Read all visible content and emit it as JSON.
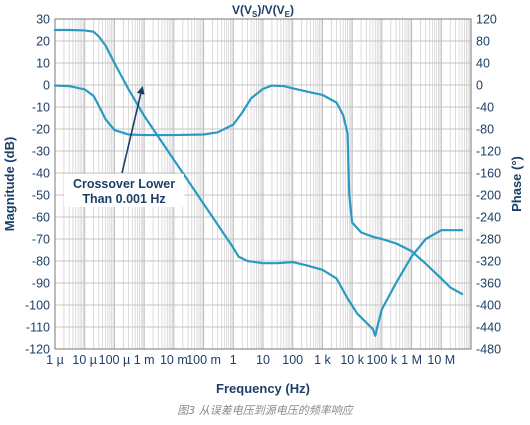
{
  "chart_data": {
    "type": "line",
    "title_parts": [
      "V(V",
      "S",
      ")/V(V",
      "E",
      ")"
    ],
    "xlabel": "Frequency (Hz)",
    "ylabel_left": "Magnitude (dB)",
    "ylabel_right": "Phase (°)",
    "x_scale": "log",
    "xlim": [
      1e-06,
      100000000.0
    ],
    "ylim_left": [
      -120,
      30
    ],
    "ylim_right": [
      -480,
      120
    ],
    "x_ticks": [
      {
        "value": 1e-06,
        "label": "1 µ"
      },
      {
        "value": 1e-05,
        "label": "10 µ"
      },
      {
        "value": 0.0001,
        "label": "100 µ"
      },
      {
        "value": 0.001,
        "label": "1 m"
      },
      {
        "value": 0.01,
        "label": "10 m"
      },
      {
        "value": 0.1,
        "label": "100 m"
      },
      {
        "value": 1,
        "label": "1"
      },
      {
        "value": 10,
        "label": "10"
      },
      {
        "value": 100,
        "label": "100"
      },
      {
        "value": 1000,
        "label": "1 k"
      },
      {
        "value": 10000,
        "label": "10 k"
      },
      {
        "value": 100000,
        "label": "100 k"
      },
      {
        "value": 1000000,
        "label": "1 M"
      },
      {
        "value": 10000000,
        "label": "10 M"
      }
    ],
    "y_ticks_left": [
      30,
      20,
      10,
      0,
      -10,
      -20,
      -30,
      -40,
      -50,
      -60,
      -70,
      -80,
      -90,
      -100,
      -110,
      -120
    ],
    "y_ticks_right": [
      120,
      80,
      40,
      0,
      -40,
      -80,
      -120,
      -160,
      -200,
      -240,
      -280,
      -320,
      -360,
      -400,
      -440,
      -480
    ],
    "grid": true,
    "series": [
      {
        "axis": "left",
        "color": "#2a9ac2",
        "points": [
          [
            1e-06,
            25
          ],
          [
            3e-06,
            25
          ],
          [
            1e-05,
            24.8
          ],
          [
            2e-05,
            24.2
          ],
          [
            3e-05,
            22
          ],
          [
            5e-05,
            18
          ],
          [
            0.0001,
            10
          ],
          [
            0.0003,
            -2
          ],
          [
            0.001,
            -14
          ],
          [
            0.01,
            -34
          ],
          [
            0.1,
            -54
          ],
          [
            1,
            -74
          ],
          [
            1.5,
            -78
          ],
          [
            3,
            -80
          ],
          [
            10,
            -81
          ],
          [
            30,
            -81
          ],
          [
            100,
            -80.5
          ],
          [
            300,
            -82
          ],
          [
            1000,
            -84
          ],
          [
            3000,
            -88
          ],
          [
            7000,
            -97
          ],
          [
            15000,
            -104
          ],
          [
            30000,
            -108
          ],
          [
            50000,
            -111
          ],
          [
            60000,
            -114
          ],
          [
            70000,
            -110
          ],
          [
            100000,
            -102
          ],
          [
            300000,
            -90
          ],
          [
            1000000,
            -78
          ],
          [
            3000000,
            -70
          ],
          [
            10000000,
            -66
          ],
          [
            30000000,
            -66
          ],
          [
            50000000,
            -66
          ]
        ]
      },
      {
        "axis": "right",
        "color": "#2a9ac2",
        "points": [
          [
            1e-06,
            -1
          ],
          [
            3e-06,
            -2
          ],
          [
            1e-05,
            -8
          ],
          [
            2e-05,
            -20
          ],
          [
            3e-05,
            -38
          ],
          [
            5e-05,
            -62
          ],
          [
            0.0001,
            -82
          ],
          [
            0.0003,
            -90
          ],
          [
            0.001,
            -91
          ],
          [
            0.01,
            -91
          ],
          [
            0.1,
            -90
          ],
          [
            0.3,
            -86
          ],
          [
            1,
            -72
          ],
          [
            2,
            -50
          ],
          [
            4,
            -24
          ],
          [
            10,
            -7
          ],
          [
            20,
            -1
          ],
          [
            50,
            -2
          ],
          [
            100,
            -6
          ],
          [
            300,
            -12
          ],
          [
            1000,
            -18
          ],
          [
            3000,
            -32
          ],
          [
            5000,
            -55
          ],
          [
            7000,
            -88
          ],
          [
            8000,
            -200
          ],
          [
            10000,
            -250
          ],
          [
            20000,
            -268
          ],
          [
            50000,
            -276
          ],
          [
            100000,
            -280
          ],
          [
            300000,
            -288
          ],
          [
            1000000,
            -302
          ],
          [
            3000000,
            -325
          ],
          [
            10000000,
            -352
          ],
          [
            20000000,
            -368
          ],
          [
            50000000,
            -380
          ]
        ]
      }
    ],
    "annotation": {
      "lines": [
        "Crossover Lower",
        "Than 0.001 Hz"
      ],
      "points_to": [
        0.001,
        0
      ]
    }
  },
  "caption": "图3 从误差电压到源电压的频率响应"
}
